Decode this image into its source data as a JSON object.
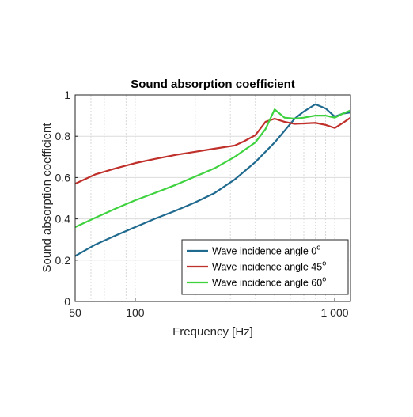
{
  "chart_data": {
    "type": "line",
    "title": "Sound absorption coefficient",
    "xlabel": "Frequency [Hz]",
    "ylabel": "Sound absorption coefficient",
    "x_scale": "log",
    "xlim": [
      50,
      1200
    ],
    "ylim": [
      0,
      1
    ],
    "x_ticks": [
      {
        "value": 50,
        "label": "50"
      },
      {
        "value": 100,
        "label": "100"
      },
      {
        "value": 1000,
        "label": "1 000"
      }
    ],
    "y_ticks": [
      {
        "value": 0,
        "label": "0"
      },
      {
        "value": 0.2,
        "label": "0.2"
      },
      {
        "value": 0.4,
        "label": "0.4"
      },
      {
        "value": 0.6,
        "label": "0.6"
      },
      {
        "value": 0.8,
        "label": "0.8"
      },
      {
        "value": 1,
        "label": "1"
      }
    ],
    "grid": true,
    "legend_position": "bottom-right",
    "series": [
      {
        "name": "Wave incidence angle 0",
        "superscript": "o",
        "color": "#1f6a8e",
        "points": [
          [
            50,
            0.22
          ],
          [
            63,
            0.275
          ],
          [
            80,
            0.32
          ],
          [
            100,
            0.36
          ],
          [
            125,
            0.4
          ],
          [
            160,
            0.44
          ],
          [
            200,
            0.48
          ],
          [
            250,
            0.525
          ],
          [
            315,
            0.59
          ],
          [
            400,
            0.675
          ],
          [
            500,
            0.77
          ],
          [
            630,
            0.885
          ],
          [
            700,
            0.92
          ],
          [
            800,
            0.955
          ],
          [
            900,
            0.935
          ],
          [
            1000,
            0.895
          ],
          [
            1100,
            0.91
          ],
          [
            1200,
            0.915
          ]
        ]
      },
      {
        "name": "Wave incidence angle 45",
        "superscript": "o",
        "color": "#c0302b",
        "points": [
          [
            50,
            0.57
          ],
          [
            63,
            0.615
          ],
          [
            80,
            0.645
          ],
          [
            100,
            0.67
          ],
          [
            125,
            0.69
          ],
          [
            160,
            0.71
          ],
          [
            200,
            0.725
          ],
          [
            250,
            0.74
          ],
          [
            315,
            0.755
          ],
          [
            350,
            0.775
          ],
          [
            400,
            0.805
          ],
          [
            450,
            0.87
          ],
          [
            500,
            0.885
          ],
          [
            560,
            0.87
          ],
          [
            630,
            0.86
          ],
          [
            800,
            0.865
          ],
          [
            900,
            0.855
          ],
          [
            1000,
            0.84
          ],
          [
            1100,
            0.865
          ],
          [
            1200,
            0.89
          ]
        ]
      },
      {
        "name": "Wave incidence angle 60",
        "superscript": "o",
        "color": "#3fd23f",
        "points": [
          [
            50,
            0.36
          ],
          [
            63,
            0.405
          ],
          [
            80,
            0.45
          ],
          [
            100,
            0.49
          ],
          [
            125,
            0.525
          ],
          [
            160,
            0.565
          ],
          [
            200,
            0.605
          ],
          [
            250,
            0.645
          ],
          [
            315,
            0.7
          ],
          [
            400,
            0.77
          ],
          [
            450,
            0.835
          ],
          [
            500,
            0.93
          ],
          [
            560,
            0.89
          ],
          [
            630,
            0.885
          ],
          [
            700,
            0.89
          ],
          [
            800,
            0.9
          ],
          [
            900,
            0.9
          ],
          [
            1000,
            0.89
          ],
          [
            1100,
            0.91
          ],
          [
            1200,
            0.925
          ]
        ]
      }
    ]
  }
}
